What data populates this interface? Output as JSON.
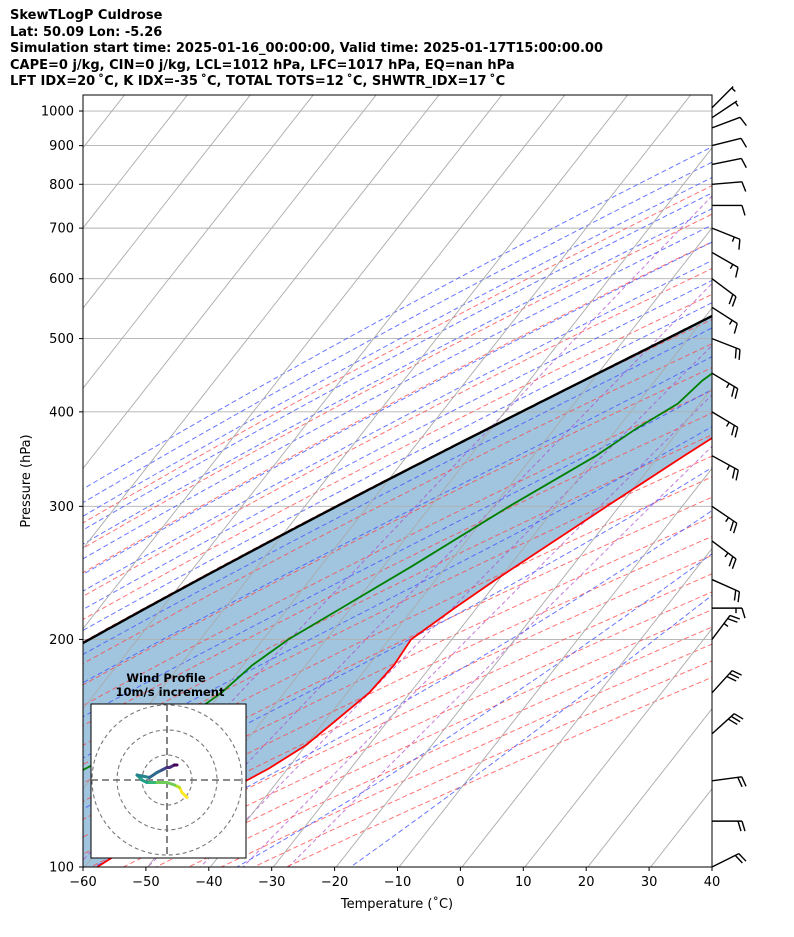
{
  "header": {
    "line1": "SkewTLogP Culdrose",
    "line2": "Lat: 50.09   Lon: -5.26",
    "line3": "Simulation start time: 2025-01-16_00:00:00, Valid time: 2025-01-17T15:00:00.00",
    "line4": "CAPE=0 j/kg, CIN=0 j/kg, LCL=1012 hPa, LFC=1017 hPa, EQ=nan hPa",
    "line5": "LFT IDX=20 ˚C, K IDX=-35 ˚C, TOTAL TOTS=12 ˚C, SHWTR_IDX=17 ˚C"
  },
  "chart_data": {
    "type": "skewt",
    "xlabel": "Temperature (˚C)",
    "ylabel": "Pressure (hPa)",
    "xlim": [
      -60,
      40
    ],
    "ylim": [
      1050,
      100
    ],
    "yscale": "log",
    "x_ticks": [
      "−60",
      "−50",
      "−40",
      "−30",
      "−20",
      "−10",
      "0",
      "10",
      "20",
      "30",
      "40"
    ],
    "y_ticks": [
      "100",
      "200",
      "300",
      "400",
      "500",
      "600",
      "700",
      "800",
      "900",
      "1000"
    ],
    "grid": true,
    "colors": {
      "temperature": "#ff0000",
      "dewpoint": "#008000",
      "parcel": "#000000",
      "cape_cin_fill": "#a1c5df",
      "dry_adiabats": "#ff4444",
      "moist_adiabats": "#4455ff",
      "mixing_ratio": "#aa44cc"
    },
    "temperature": [
      {
        "p": 1012,
        "t": 6.0
      },
      {
        "p": 1000,
        "t": 6.3
      },
      {
        "p": 970,
        "t": 7.0
      },
      {
        "p": 940,
        "t": 9.5
      },
      {
        "p": 910,
        "t": 11.5
      },
      {
        "p": 880,
        "t": 12.5
      },
      {
        "p": 850,
        "t": 12.9
      },
      {
        "p": 820,
        "t": 13.1
      },
      {
        "p": 800,
        "t": 12.6
      },
      {
        "p": 750,
        "t": 11.3
      },
      {
        "p": 700,
        "t": 9.7
      },
      {
        "p": 650,
        "t": 8.0
      },
      {
        "p": 600,
        "t": 6.0
      },
      {
        "p": 550,
        "t": 3.0
      },
      {
        "p": 500,
        "t": -1.5
      },
      {
        "p": 450,
        "t": -5.8
      },
      {
        "p": 400,
        "t": -10.5
      },
      {
        "p": 350,
        "t": -16.0
      },
      {
        "p": 300,
        "t": -22.0
      },
      {
        "p": 270,
        "t": -26.0
      },
      {
        "p": 240,
        "t": -30.5
      },
      {
        "p": 220,
        "t": -33.5
      },
      {
        "p": 200,
        "t": -36.5
      },
      {
        "p": 185,
        "t": -36.0
      },
      {
        "p": 170,
        "t": -36.5
      },
      {
        "p": 155,
        "t": -38.5
      },
      {
        "p": 145,
        "t": -40.0
      },
      {
        "p": 135,
        "t": -43.0
      },
      {
        "p": 128,
        "t": -46.0
      },
      {
        "p": 120,
        "t": -49.0
      },
      {
        "p": 110,
        "t": -54.0
      },
      {
        "p": 100,
        "t": -58.0
      }
    ],
    "dewpoint": [
      {
        "p": 1012,
        "t": 5.5
      },
      {
        "p": 1000,
        "t": 5.0
      },
      {
        "p": 985,
        "t": 4.0
      },
      {
        "p": 960,
        "t": -0.5
      },
      {
        "p": 930,
        "t": -11.2
      },
      {
        "p": 900,
        "t": -16.5
      },
      {
        "p": 860,
        "t": -20.0
      },
      {
        "p": 820,
        "t": -22.0
      },
      {
        "p": 780,
        "t": -23.0
      },
      {
        "p": 740,
        "t": -22.0
      },
      {
        "p": 700,
        "t": -23.5
      },
      {
        "p": 650,
        "t": -28.5
      },
      {
        "p": 600,
        "t": -32.0
      },
      {
        "p": 560,
        "t": -26.0
      },
      {
        "p": 520,
        "t": -20.0
      },
      {
        "p": 500,
        "t": -19.5
      },
      {
        "p": 470,
        "t": -20.5
      },
      {
        "p": 440,
        "t": -22.5
      },
      {
        "p": 410,
        "t": -23.5
      },
      {
        "p": 380,
        "t": -27.0
      },
      {
        "p": 350,
        "t": -30.0
      },
      {
        "p": 300,
        "t": -37.5
      },
      {
        "p": 250,
        "t": -45.5
      },
      {
        "p": 220,
        "t": -51.5
      },
      {
        "p": 200,
        "t": -56.0
      },
      {
        "p": 185,
        "t": -58.5
      },
      {
        "p": 170,
        "t": -60.0
      },
      {
        "p": 160,
        "t": -62.0
      },
      {
        "p": 150,
        "t": -69.5
      },
      {
        "p": 140,
        "t": -70.0
      },
      {
        "p": 125,
        "t": -76.5
      },
      {
        "p": 110,
        "t": -82.0
      },
      {
        "p": 100,
        "t": -88.0
      }
    ],
    "wind_barbs": [
      {
        "p": 1010,
        "u": -5,
        "v": -5
      },
      {
        "p": 980,
        "u": -6,
        "v": -4
      },
      {
        "p": 950,
        "u": -8,
        "v": -3
      },
      {
        "p": 900,
        "u": -8,
        "v": -2
      },
      {
        "p": 850,
        "u": -10,
        "v": -2
      },
      {
        "p": 800,
        "u": -12,
        "v": -1
      },
      {
        "p": 750,
        "u": -10,
        "v": 0
      },
      {
        "p": 700,
        "u": -15,
        "v": 6
      },
      {
        "p": 650,
        "u": -14,
        "v": 8
      },
      {
        "p": 600,
        "u": -16,
        "v": 12
      },
      {
        "p": 550,
        "u": -14,
        "v": 9
      },
      {
        "p": 500,
        "u": -18,
        "v": 7
      },
      {
        "p": 450,
        "u": -20,
        "v": 12
      },
      {
        "p": 400,
        "u": -20,
        "v": 12
      },
      {
        "p": 350,
        "u": -20,
        "v": 11
      },
      {
        "p": 300,
        "u": -22,
        "v": 15
      },
      {
        "p": 270,
        "u": -20,
        "v": 15
      },
      {
        "p": 240,
        "u": -18,
        "v": 8
      },
      {
        "p": 220,
        "u": -15,
        "v": 0
      },
      {
        "p": 200,
        "u": -15,
        "v": -20
      },
      {
        "p": 170,
        "u": -20,
        "v": -22
      },
      {
        "p": 150,
        "u": -22,
        "v": -20
      },
      {
        "p": 130,
        "u": -22,
        "v": -3
      },
      {
        "p": 115,
        "u": -22,
        "v": 0
      },
      {
        "p": 100,
        "u": -20,
        "v": -10
      }
    ],
    "inset": {
      "title_line1": "Wind Profile",
      "title_line2": "10m/s increment",
      "ring_increment": 10,
      "hodograph": [
        {
          "u": 8,
          "v": -7
        },
        {
          "u": 6,
          "v": -5
        },
        {
          "u": 5,
          "v": -3
        },
        {
          "u": 3,
          "v": -2
        },
        {
          "u": 0,
          "v": -1
        },
        {
          "u": -5,
          "v": -1
        },
        {
          "u": -8,
          "v": -1
        },
        {
          "u": -10,
          "v": 0
        },
        {
          "u": -12,
          "v": 2
        },
        {
          "u": -7,
          "v": 1
        },
        {
          "u": -4,
          "v": 3
        },
        {
          "u": -2,
          "v": 4
        },
        {
          "u": 0,
          "v": 5
        },
        {
          "u": 1,
          "v": 5
        },
        {
          "u": 3,
          "v": 6
        },
        {
          "u": 4,
          "v": 6
        }
      ]
    }
  }
}
